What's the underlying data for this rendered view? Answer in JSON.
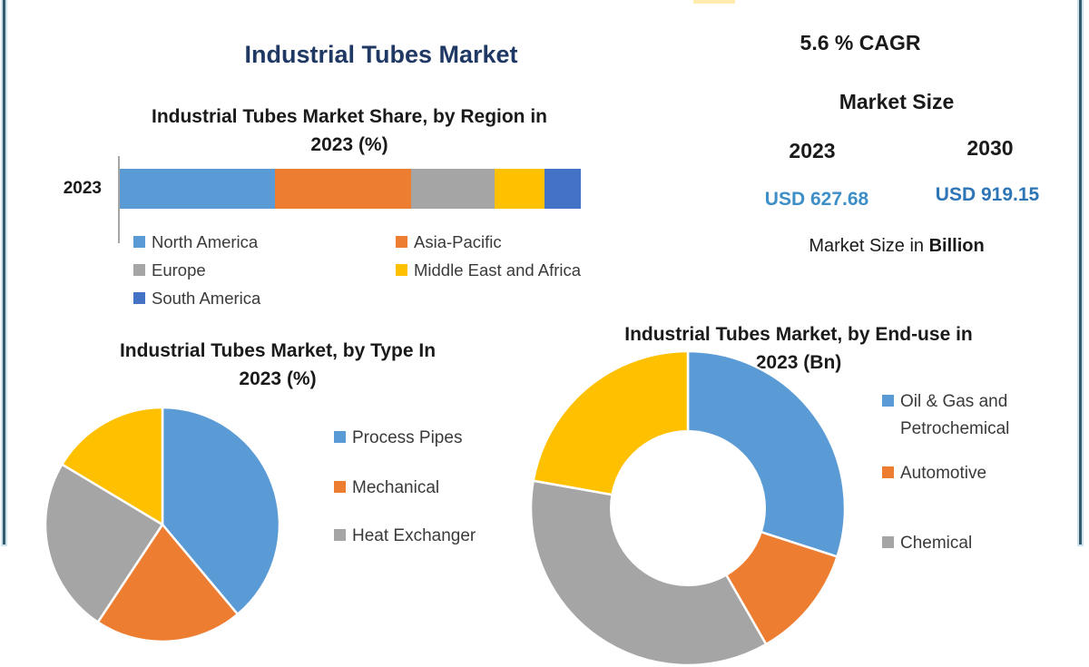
{
  "page": {
    "main_title": "Industrial Tubes Market"
  },
  "kpi": {
    "cagr": "5.6 % CAGR",
    "market_size_label": "Market Size",
    "year_start": "2023",
    "year_end": "2030",
    "value_start": "USD 627.68",
    "value_end": "USD 919.15",
    "note_prefix": "Market Size in ",
    "note_bold": "Billion"
  },
  "colors": {
    "blue": "#5B9BD5",
    "orange": "#ED7D31",
    "gray": "#A5A5A5",
    "yellow": "#FFC000",
    "dark_blue": "#4472C4",
    "title_navy": "#1F3864",
    "value_blue_light": "#3E8EC8",
    "value_blue_dark": "#2E75B6",
    "frame": "#355B6E"
  },
  "chart_data": [
    {
      "type": "bar",
      "variant": "horizontal-stacked",
      "title": "Industrial Tubes Market Share, by Region in 2023 (%)",
      "title_line1": "Industrial Tubes Market Share, by Region in",
      "title_line2": "2023 (%)",
      "category_label": "2023",
      "unit": "%",
      "xlim": [
        0,
        100
      ],
      "series": [
        {
          "name": "North America",
          "value": 33.7,
          "color": "#5B9BD5"
        },
        {
          "name": "Asia-Pacific",
          "value": 29.4,
          "color": "#ED7D31"
        },
        {
          "name": "Europe",
          "value": 18.2,
          "color": "#A5A5A5"
        },
        {
          "name": "Middle East and Africa",
          "value": 10.8,
          "color": "#FFC000"
        },
        {
          "name": "South America",
          "value": 7.9,
          "color": "#4472C4"
        }
      ],
      "legend_columns": [
        [
          0,
          2,
          4
        ],
        [
          1,
          3
        ]
      ]
    },
    {
      "type": "pie",
      "title": "Industrial Tubes Market, by Type In 2023 (%)",
      "title_line1": "Industrial Tubes Market, by Type In",
      "title_line2": "2023 (%)",
      "unit": "%",
      "slices": [
        {
          "name": "Process Pipes",
          "pct": 38.9,
          "color": "#5B9BD5",
          "label_visible": true
        },
        {
          "name": "Mechanical",
          "pct": 20.4,
          "color": "#ED7D31",
          "label_visible": true
        },
        {
          "name": "Heat Exchanger",
          "pct": 24.3,
          "color": "#A5A5A5",
          "label_visible": true
        },
        {
          "name": "",
          "pct": 16.4,
          "color": "#FFC000",
          "label_visible": false
        }
      ],
      "legend_indices": [
        0,
        1,
        2
      ]
    },
    {
      "type": "donut",
      "title": "Industrial Tubes Market, by End-use in 2023 (Bn)",
      "title_line1": "Industrial Tubes Market, by End-use in",
      "title_line2": "2023 (Bn)",
      "unit": "Bn",
      "slices": [
        {
          "name": "Oil & Gas and Petrochemical",
          "pct": 30.0,
          "color": "#5B9BD5",
          "label_visible": true
        },
        {
          "name": "Automotive",
          "pct": 11.7,
          "color": "#ED7D31",
          "label_visible": true
        },
        {
          "name": "Chemical",
          "pct": 36.1,
          "color": "#A5A5A5",
          "label_visible": true
        },
        {
          "name": "",
          "pct": 22.2,
          "color": "#FFC000",
          "label_visible": false
        }
      ],
      "legend_indices": [
        0,
        1,
        2
      ]
    }
  ]
}
